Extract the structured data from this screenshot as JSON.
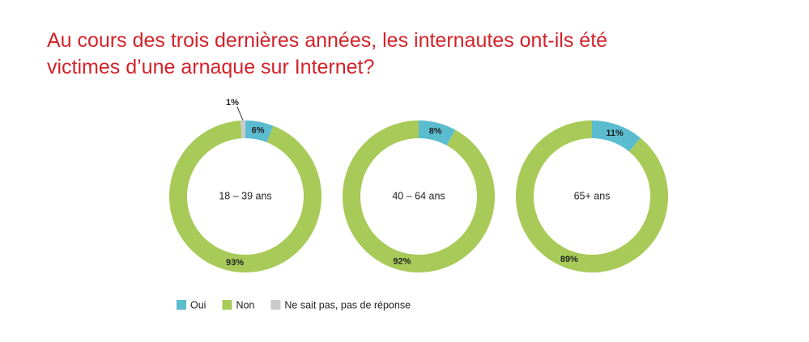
{
  "title": [
    "Au cours des trois dernières années, les internautes ont-ils été",
    "victimes d’une arnaque sur Internet?"
  ],
  "legend": {
    "categories": [
      "Oui",
      "Non",
      "Ne sait pas, pas de réponse"
    ],
    "colors": [
      "#5bbcd0",
      "#a8ca58",
      "#c9cbcc"
    ]
  },
  "chart_data": [
    {
      "type": "donut",
      "center_label": "18 – 39 ans",
      "values": [
        6,
        93,
        1
      ],
      "value_labels": [
        "6%",
        "93%",
        "1%"
      ]
    },
    {
      "type": "donut",
      "center_label": "40 – 64 ans",
      "values": [
        8,
        92,
        null
      ],
      "value_labels": [
        "8%",
        "92%",
        null
      ]
    },
    {
      "type": "donut",
      "center_label": "65+ ans",
      "values": [
        11,
        89,
        null
      ],
      "value_labels": [
        "11%",
        "89%",
        null
      ]
    }
  ]
}
